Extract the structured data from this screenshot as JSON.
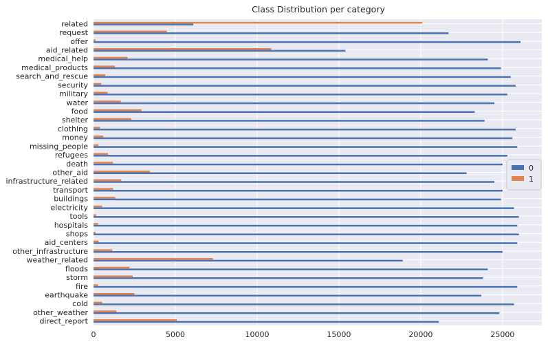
{
  "chart_data": {
    "type": "bar",
    "orientation": "horizontal",
    "title": "Class Distribution per category",
    "xlabel": "",
    "ylabel": "",
    "xlim": [
      0,
      27400
    ],
    "xticks": [
      0,
      5000,
      10000,
      15000,
      20000,
      25000
    ],
    "grid": true,
    "legend_position": "center-right",
    "categories": [
      "direct_report",
      "other_weather",
      "cold",
      "earthquake",
      "fire",
      "storm",
      "floods",
      "weather_related",
      "other_infrastructure",
      "aid_centers",
      "shops",
      "hospitals",
      "tools",
      "electricity",
      "buildings",
      "transport",
      "infrastructure_related",
      "other_aid",
      "death",
      "refugees",
      "missing_people",
      "money",
      "clothing",
      "shelter",
      "food",
      "water",
      "military",
      "security",
      "search_and_rescue",
      "medical_products",
      "medical_help",
      "aid_related",
      "offer",
      "request",
      "related"
    ],
    "series": [
      {
        "name": "0",
        "color": "#4c72b0",
        "values": [
          21100,
          24800,
          25700,
          23700,
          25900,
          23800,
          24100,
          18900,
          25000,
          25900,
          26000,
          25900,
          26000,
          25700,
          24900,
          25000,
          24500,
          22800,
          25000,
          25300,
          25900,
          25600,
          25800,
          23900,
          23300,
          24500,
          25300,
          25800,
          25500,
          24900,
          24100,
          15400,
          26100,
          21700,
          6100
        ]
      },
      {
        "name": "1",
        "color": "#dd8452",
        "values": [
          5100,
          1400,
          530,
          2500,
          280,
          2400,
          2200,
          7300,
          1150,
          310,
          120,
          280,
          160,
          530,
          1330,
          1200,
          1700,
          3450,
          1190,
          880,
          300,
          600,
          400,
          2300,
          2930,
          1670,
          860,
          470,
          720,
          1310,
          2080,
          10860,
          120,
          4480,
          20090
        ]
      }
    ]
  }
}
